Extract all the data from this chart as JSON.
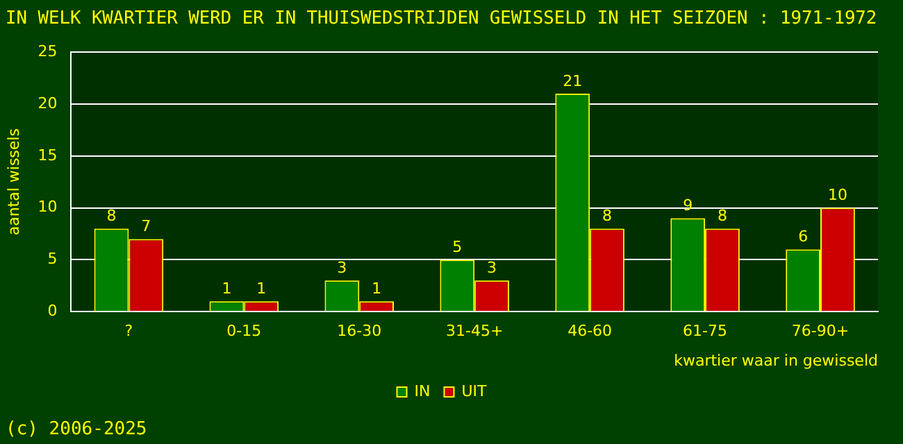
{
  "chart_data": {
    "type": "bar",
    "title": "IN WELK KWARTIER WERD ER IN THUISWEDSTRIJDEN GEWISSELD IN HET SEIZOEN : 1971-1972",
    "xlabel": "kwartier waar in gewisseld",
    "ylabel": "aantal wissels",
    "categories": [
      "?",
      "0-15",
      "16-30",
      "31-45+",
      "46-60",
      "61-75",
      "76-90+"
    ],
    "series": [
      {
        "name": "IN",
        "color": "#008000",
        "values": [
          8,
          1,
          3,
          5,
          21,
          9,
          6
        ]
      },
      {
        "name": "UIT",
        "color": "#cc0000",
        "values": [
          7,
          1,
          1,
          3,
          8,
          8,
          10
        ]
      }
    ],
    "ylim": [
      0,
      25
    ],
    "yticks": [
      0,
      5,
      10,
      15,
      20,
      25
    ],
    "grid": "y",
    "legend": "bottom",
    "data_labels": true,
    "annotations": [
      "(c) 2006-2025"
    ]
  }
}
